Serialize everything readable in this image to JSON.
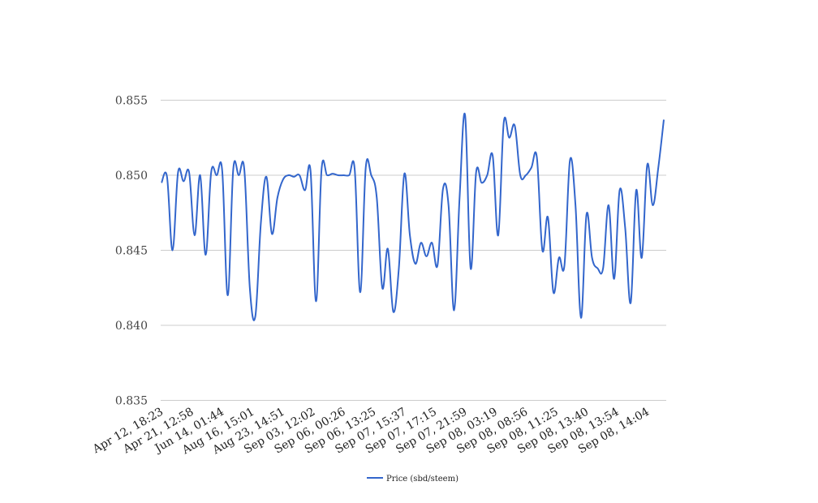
{
  "chart_data": {
    "type": "line",
    "title": "",
    "xlabel": "",
    "ylabel": "",
    "ylim": [
      0.835,
      0.855
    ],
    "y_ticks": [
      "0.835",
      "0.840",
      "0.845",
      "0.850",
      "0.855"
    ],
    "x_tick_labels": [
      "Apr 12, 18:23",
      "Apr 21, 12:58",
      "Jun 14, 01:44",
      "Aug 16, 15:01",
      "Aug 23, 14:51",
      "Sep 03, 12:02",
      "Sep 06, 00:26",
      "Sep 06, 13:25",
      "Sep 07, 15:37",
      "Sep 07, 17:15",
      "Sep 07, 21:59",
      "Sep 08, 03:19",
      "Sep 08, 08:56",
      "Sep 08, 11:25",
      "Sep 08, 13:40",
      "Sep 08, 13:54",
      "Sep 08, 14:04"
    ],
    "grid": "horizontal",
    "legend_position": "bottom",
    "colors": {
      "series": "#3366cc",
      "grid": "#cccccc",
      "axis_text": "#444444"
    },
    "series": [
      {
        "name": "Price (sbd/steem)",
        "values": [
          0.8495,
          0.8499,
          0.845,
          0.8502,
          0.8496,
          0.8502,
          0.846,
          0.85,
          0.8447,
          0.8502,
          0.85,
          0.8503,
          0.842,
          0.8504,
          0.85,
          0.8504,
          0.8425,
          0.8406,
          0.8468,
          0.8499,
          0.8461,
          0.8485,
          0.8497,
          0.85,
          0.8499,
          0.85,
          0.849,
          0.8503,
          0.8416,
          0.8504,
          0.85,
          0.8501,
          0.85,
          0.85,
          0.85,
          0.8504,
          0.8422,
          0.8505,
          0.85,
          0.8485,
          0.8425,
          0.8451,
          0.8409,
          0.8438,
          0.8501,
          0.846,
          0.8441,
          0.8455,
          0.8446,
          0.8455,
          0.844,
          0.8491,
          0.848,
          0.841,
          0.8485,
          0.854,
          0.8438,
          0.8502,
          0.8495,
          0.85,
          0.8513,
          0.846,
          0.8535,
          0.8525,
          0.8533,
          0.85,
          0.85,
          0.8505,
          0.8512,
          0.845,
          0.8472,
          0.8422,
          0.8445,
          0.844,
          0.851,
          0.848,
          0.8405,
          0.8474,
          0.8445,
          0.8438,
          0.8438,
          0.848,
          0.8431,
          0.849,
          0.8465,
          0.8415,
          0.849,
          0.8445,
          0.8507,
          0.848,
          0.8505,
          0.8537
        ]
      }
    ]
  }
}
